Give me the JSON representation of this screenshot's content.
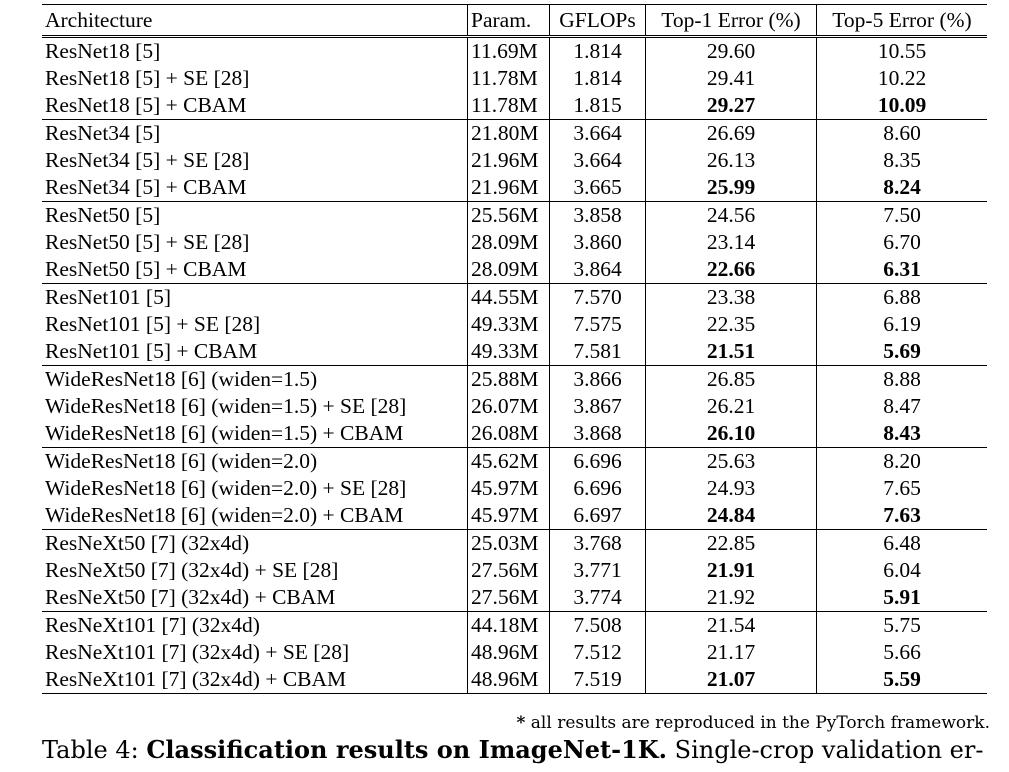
{
  "table": {
    "headers": {
      "architecture": "Architecture",
      "param": "Param.",
      "gflops": "GFLOPs",
      "top1": "Top-1 Error (%)",
      "top5": "Top-5 Error (%)"
    },
    "rows": [
      {
        "architecture": "ResNet18 [5]",
        "param": "11.69M",
        "gflops": "1.814",
        "top1": "29.60",
        "top5": "10.55",
        "bold_top1": false,
        "bold_top5": false,
        "group_end": false
      },
      {
        "architecture": "ResNet18 [5] + SE [28]",
        "param": "11.78M",
        "gflops": "1.814",
        "top1": "29.41",
        "top5": "10.22",
        "bold_top1": false,
        "bold_top5": false,
        "group_end": false
      },
      {
        "architecture": "ResNet18 [5] + CBAM",
        "param": "11.78M",
        "gflops": "1.815",
        "top1": "29.27",
        "top5": "10.09",
        "bold_top1": true,
        "bold_top5": true,
        "group_end": true
      },
      {
        "architecture": "ResNet34 [5]",
        "param": "21.80M",
        "gflops": "3.664",
        "top1": "26.69",
        "top5": "8.60",
        "bold_top1": false,
        "bold_top5": false,
        "group_end": false
      },
      {
        "architecture": "ResNet34 [5] + SE [28]",
        "param": "21.96M",
        "gflops": "3.664",
        "top1": "26.13",
        "top5": "8.35",
        "bold_top1": false,
        "bold_top5": false,
        "group_end": false
      },
      {
        "architecture": "ResNet34 [5] + CBAM",
        "param": "21.96M",
        "gflops": "3.665",
        "top1": "25.99",
        "top5": "8.24",
        "bold_top1": true,
        "bold_top5": true,
        "group_end": true
      },
      {
        "architecture": "ResNet50 [5]",
        "param": "25.56M",
        "gflops": "3.858",
        "top1": "24.56",
        "top5": "7.50",
        "bold_top1": false,
        "bold_top5": false,
        "group_end": false
      },
      {
        "architecture": "ResNet50 [5] + SE [28]",
        "param": "28.09M",
        "gflops": "3.860",
        "top1": "23.14",
        "top5": "6.70",
        "bold_top1": false,
        "bold_top5": false,
        "group_end": false
      },
      {
        "architecture": "ResNet50 [5] + CBAM",
        "param": "28.09M",
        "gflops": "3.864",
        "top1": "22.66",
        "top5": "6.31",
        "bold_top1": true,
        "bold_top5": true,
        "group_end": true
      },
      {
        "architecture": "ResNet101 [5]",
        "param": "44.55M",
        "gflops": "7.570",
        "top1": "23.38",
        "top5": "6.88",
        "bold_top1": false,
        "bold_top5": false,
        "group_end": false
      },
      {
        "architecture": "ResNet101 [5] + SE [28]",
        "param": "49.33M",
        "gflops": "7.575",
        "top1": "22.35",
        "top5": "6.19",
        "bold_top1": false,
        "bold_top5": false,
        "group_end": false
      },
      {
        "architecture": "ResNet101 [5] + CBAM",
        "param": "49.33M",
        "gflops": "7.581",
        "top1": "21.51",
        "top5": "5.69",
        "bold_top1": true,
        "bold_top5": true,
        "group_end": true
      },
      {
        "architecture": "WideResNet18 [6] (widen=1.5)",
        "param": "25.88M",
        "gflops": "3.866",
        "top1": "26.85",
        "top5": "8.88",
        "bold_top1": false,
        "bold_top5": false,
        "group_end": false
      },
      {
        "architecture": "WideResNet18 [6] (widen=1.5) + SE [28]",
        "param": "26.07M",
        "gflops": "3.867",
        "top1": "26.21",
        "top5": "8.47",
        "bold_top1": false,
        "bold_top5": false,
        "group_end": false
      },
      {
        "architecture": "WideResNet18 [6] (widen=1.5) + CBAM",
        "param": "26.08M",
        "gflops": "3.868",
        "top1": "26.10",
        "top5": "8.43",
        "bold_top1": true,
        "bold_top5": true,
        "group_end": true
      },
      {
        "architecture": "WideResNet18 [6] (widen=2.0)",
        "param": "45.62M",
        "gflops": "6.696",
        "top1": "25.63",
        "top5": "8.20",
        "bold_top1": false,
        "bold_top5": false,
        "group_end": false
      },
      {
        "architecture": "WideResNet18 [6] (widen=2.0) + SE [28]",
        "param": "45.97M",
        "gflops": "6.696",
        "top1": "24.93",
        "top5": "7.65",
        "bold_top1": false,
        "bold_top5": false,
        "group_end": false
      },
      {
        "architecture": "WideResNet18 [6] (widen=2.0) + CBAM",
        "param": "45.97M",
        "gflops": "6.697",
        "top1": "24.84",
        "top5": "7.63",
        "bold_top1": true,
        "bold_top5": true,
        "group_end": true
      },
      {
        "architecture": "ResNeXt50 [7] (32x4d)",
        "param": "25.03M",
        "gflops": "3.768",
        "top1": "22.85",
        "top5": "6.48",
        "bold_top1": false,
        "bold_top5": false,
        "group_end": false
      },
      {
        "architecture": "ResNeXt50 [7] (32x4d) + SE [28]",
        "param": "27.56M",
        "gflops": "3.771",
        "top1": "21.91",
        "top5": "6.04",
        "bold_top1": true,
        "bold_top5": false,
        "group_end": false
      },
      {
        "architecture": "ResNeXt50 [7] (32x4d) + CBAM",
        "param": "27.56M",
        "gflops": "3.774",
        "top1": "21.92",
        "top5": "5.91",
        "bold_top1": false,
        "bold_top5": true,
        "group_end": true
      },
      {
        "architecture": "ResNeXt101 [7] (32x4d)",
        "param": "44.18M",
        "gflops": "7.508",
        "top1": "21.54",
        "top5": "5.75",
        "bold_top1": false,
        "bold_top5": false,
        "group_end": false
      },
      {
        "architecture": "ResNeXt101 [7] (32x4d) + SE [28]",
        "param": "48.96M",
        "gflops": "7.512",
        "top1": "21.17",
        "top5": "5.66",
        "bold_top1": false,
        "bold_top5": false,
        "group_end": false
      },
      {
        "architecture": "ResNeXt101 [7] (32x4d) + CBAM",
        "param": "48.96M",
        "gflops": "7.519",
        "top1": "21.07",
        "top5": "5.59",
        "bold_top1": true,
        "bold_top5": true,
        "group_end": true
      }
    ]
  },
  "footnote": {
    "star": "*",
    "text": " all results are reproduced in the PyTorch framework."
  },
  "caption": {
    "label": "Table 4: ",
    "bold": "Classification results on ImageNet-1K.",
    "rest": " Single-crop validation er-"
  }
}
